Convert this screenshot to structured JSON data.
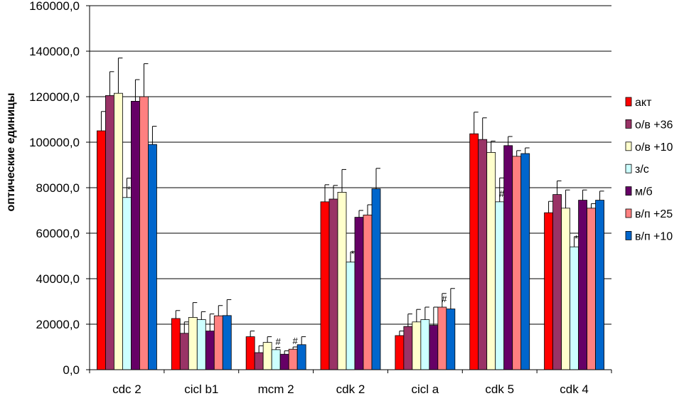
{
  "chart_data": {
    "type": "bar",
    "title": "",
    "xlabel": "",
    "ylabel": "оптические единицы",
    "ylim": [
      0,
      160000
    ],
    "ytick_step": 20000,
    "ytick_labels": [
      "0,0",
      "20000,0",
      "40000,0",
      "60000,0",
      "80000,0",
      "100000,0",
      "120000,0",
      "140000,0",
      "160000,0"
    ],
    "grid": true,
    "legend_position": "right",
    "categories": [
      "cdc 2",
      "cicl b1",
      "mcm 2",
      "cdk 2",
      "cicl a",
      "cdk 5",
      "cdk 4"
    ],
    "series": [
      {
        "name": "акт",
        "color": "#ff0000",
        "values": [
          105000,
          22500,
          14500,
          73800,
          15000,
          103700,
          69000
        ],
        "errors": [
          8500,
          3500,
          2500,
          7500,
          2000,
          9500,
          5000
        ]
      },
      {
        "name": "о/в +36",
        "color": "#993366",
        "values": [
          120500,
          16000,
          7500,
          75000,
          19000,
          101200,
          77000
        ],
        "errors": [
          10500,
          5000,
          3000,
          6000,
          5500,
          9500,
          6000
        ]
      },
      {
        "name": "о/в +10",
        "color": "#ffffcc",
        "values": [
          121500,
          23000,
          12000,
          78000,
          21000,
          95500,
          71000
        ],
        "errors": [
          15500,
          6500,
          2500,
          10000,
          5500,
          5000,
          8000
        ]
      },
      {
        "name": "з/с",
        "color": "#ccffff",
        "values": [
          75700,
          22000,
          8800,
          47300,
          22000,
          73800,
          54000
        ],
        "errors": [
          8500,
          3500,
          1000,
          4500,
          5500,
          10500,
          4500
        ]
      },
      {
        "name": "м/б",
        "color": "#660066",
        "values": [
          118000,
          17000,
          6800,
          67000,
          19500,
          98500,
          74500
        ],
        "errors": [
          9500,
          7500,
          1500,
          3000,
          8000,
          4000,
          4500
        ]
      },
      {
        "name": "в/п +25",
        "color": "#ff8080",
        "values": [
          120000,
          23700,
          9000,
          68000,
          27500,
          93800,
          71000
        ],
        "errors": [
          14500,
          4500,
          1000,
          4500,
          6000,
          2500,
          2000
        ]
      },
      {
        "name": "в/п +10",
        "color": "#0066cc",
        "values": [
          99000,
          23800,
          11000,
          79500,
          26700,
          95000,
          74500
        ],
        "errors": [
          8000,
          7000,
          3500,
          9000,
          9000,
          2500,
          4000
        ]
      }
    ],
    "annotations": [
      {
        "category": 0,
        "series": 3,
        "text": "*"
      },
      {
        "category": 2,
        "series": 3,
        "text": "#"
      },
      {
        "category": 2,
        "series": 5,
        "text": "#"
      },
      {
        "category": 3,
        "series": 3,
        "text": "*"
      },
      {
        "category": 4,
        "series": 5,
        "text": "#"
      },
      {
        "category": 5,
        "series": 3,
        "text": "#"
      },
      {
        "category": 6,
        "series": 3,
        "text": "*"
      }
    ]
  }
}
